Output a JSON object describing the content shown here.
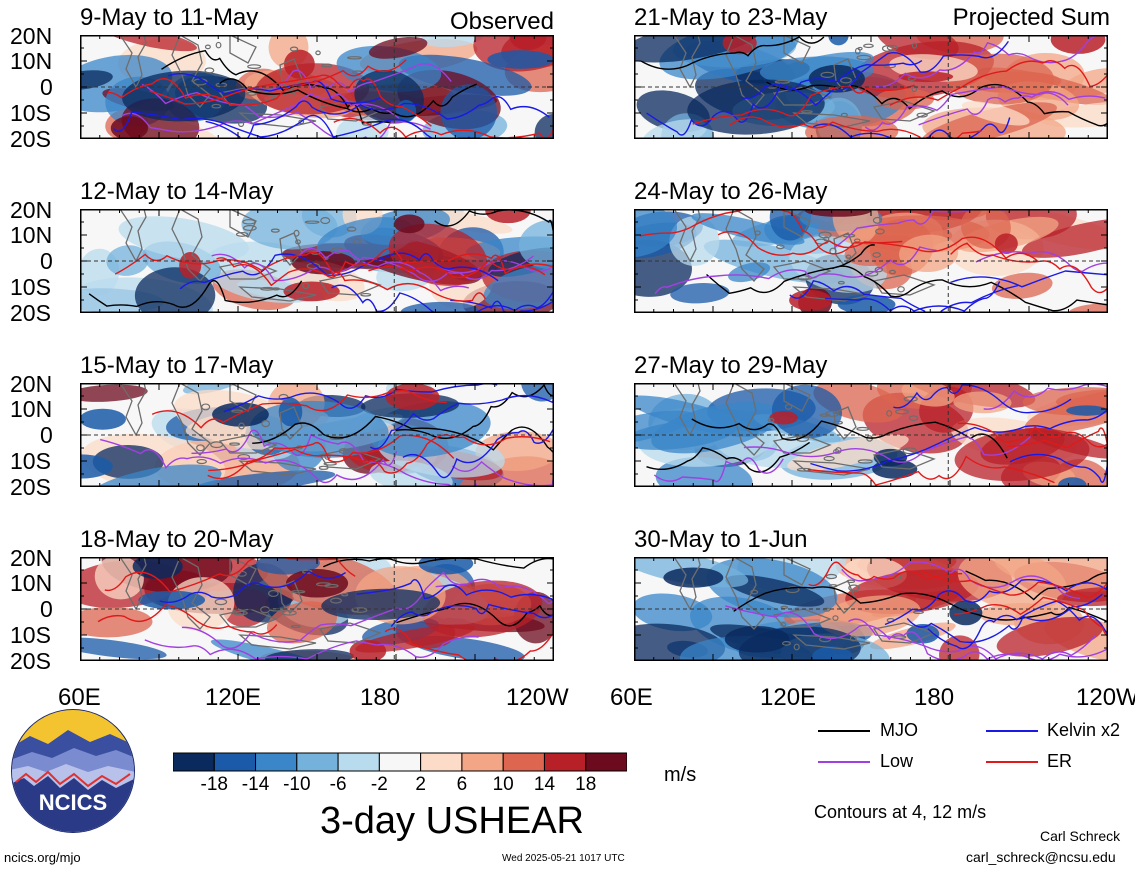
{
  "panels_left": [
    {
      "title": "9-May to 11-May"
    },
    {
      "title": "12-May to 14-May"
    },
    {
      "title": "15-May to 17-May"
    },
    {
      "title": "18-May to 20-May"
    }
  ],
  "panels_right": [
    {
      "title": "21-May to 23-May"
    },
    {
      "title": "24-May to 26-May"
    },
    {
      "title": "27-May to 29-May"
    },
    {
      "title": "30-May to 1-Jun"
    }
  ],
  "labels": {
    "observed": "Observed",
    "projected": "Projected Sum"
  },
  "lat_ticks": [
    "20N",
    "10N",
    "0",
    "10S",
    "20S"
  ],
  "lon_ticks": [
    "60E",
    "120E",
    "180",
    "120W"
  ],
  "legend": {
    "mjo": "MJO",
    "low": "Low",
    "kelvin": "Kelvin x2",
    "er": "ER",
    "colors": {
      "mjo": "#000000",
      "low": "#a040e0",
      "kelvin": "#1a1ae6",
      "er": "#e01a1a"
    }
  },
  "colorbar": {
    "ticks": [
      "-18",
      "-14",
      "-10",
      "-6",
      "-2",
      "2",
      "6",
      "10",
      "14",
      "18"
    ],
    "unit": "m/s",
    "colors": [
      "#0a2a5e",
      "#1a5aa8",
      "#3a86c8",
      "#74b2dc",
      "#b9dbee",
      "#f7f7f7",
      "#fcdcc8",
      "#f3a686",
      "#dc6650",
      "#b82028",
      "#6c0a1e"
    ]
  },
  "title": "3-day USHEAR",
  "contours_note": "Contours at 4, 12 m/s",
  "author": "Carl Schreck",
  "email": "carl_schreck@ncsu.edu",
  "url": "ncics.org/mjo",
  "timestamp": "Wed 2025-05-21 1017 UTC",
  "logo_text": "NCICS"
}
